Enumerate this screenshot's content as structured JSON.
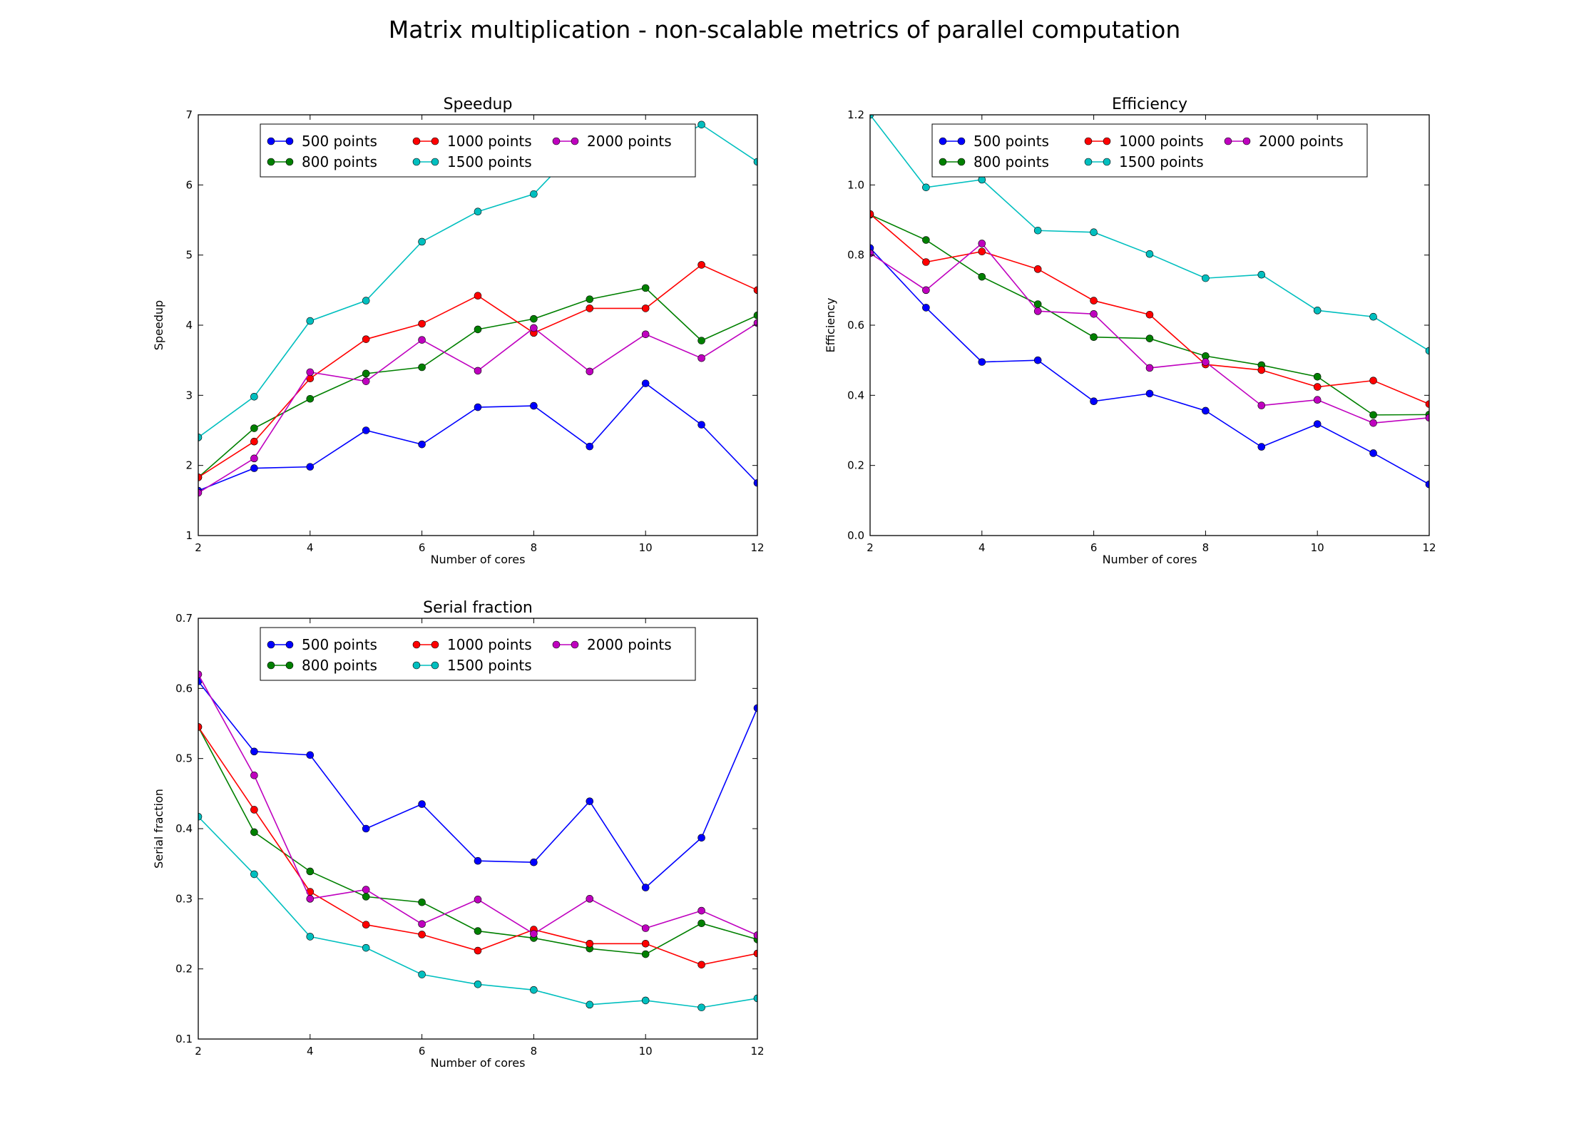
{
  "figure": {
    "title": "Matrix multiplication - non-scalable metrics of parallel computation"
  },
  "chart_data": [
    {
      "type": "line",
      "title": "Speedup",
      "xlabel": "Number of cores",
      "ylabel": "Speedup",
      "xlim": [
        2,
        12
      ],
      "ylim": [
        1,
        7
      ],
      "xticks": [
        2,
        4,
        6,
        8,
        10,
        12
      ],
      "yticks": [
        1,
        2,
        3,
        4,
        5,
        6,
        7
      ],
      "grid": false,
      "legend": "top-center",
      "x": [
        2,
        3,
        4,
        5,
        6,
        7,
        8,
        9,
        10,
        11,
        12
      ],
      "series": [
        {
          "name": "500 points",
          "color": "#0000ff",
          "values": [
            1.64,
            1.96,
            1.98,
            2.5,
            2.3,
            2.83,
            2.85,
            2.27,
            3.17,
            2.58,
            1.75
          ]
        },
        {
          "name": "800 points",
          "color": "#008000",
          "values": [
            1.83,
            2.53,
            2.95,
            3.31,
            3.4,
            3.94,
            4.09,
            4.37,
            4.53,
            3.78,
            4.14
          ]
        },
        {
          "name": "1000 points",
          "color": "#ff0000",
          "values": [
            1.83,
            2.34,
            3.24,
            3.8,
            4.02,
            4.42,
            3.89,
            4.24,
            4.24,
            4.86,
            4.5
          ]
        },
        {
          "name": "1500 points",
          "color": "#00bfbf",
          "values": [
            2.4,
            2.98,
            4.06,
            4.35,
            5.19,
            5.62,
            5.87,
            6.7,
            6.42,
            6.86,
            6.33
          ]
        },
        {
          "name": "2000 points",
          "color": "#bf00bf",
          "values": [
            1.61,
            2.1,
            3.33,
            3.2,
            3.79,
            3.35,
            3.96,
            3.34,
            3.87,
            3.53,
            4.03
          ]
        }
      ]
    },
    {
      "type": "line",
      "title": "Efficiency",
      "xlabel": "Number of cores",
      "ylabel": "Efficiency",
      "xlim": [
        2,
        12
      ],
      "ylim": [
        0.0,
        1.2
      ],
      "xticks": [
        2,
        4,
        6,
        8,
        10,
        12
      ],
      "yticks": [
        0.0,
        0.2,
        0.4,
        0.6,
        0.8,
        1.0,
        1.2
      ],
      "grid": false,
      "legend": "top-center",
      "x": [
        2,
        3,
        4,
        5,
        6,
        7,
        8,
        9,
        10,
        11,
        12
      ],
      "series": [
        {
          "name": "500 points",
          "color": "#0000ff",
          "values": [
            0.82,
            0.65,
            0.495,
            0.5,
            0.383,
            0.405,
            0.356,
            0.253,
            0.318,
            0.235,
            0.146
          ]
        },
        {
          "name": "800 points",
          "color": "#008000",
          "values": [
            0.915,
            0.843,
            0.738,
            0.66,
            0.566,
            0.562,
            0.512,
            0.486,
            0.453,
            0.344,
            0.345
          ]
        },
        {
          "name": "1000 points",
          "color": "#ff0000",
          "values": [
            0.917,
            0.78,
            0.81,
            0.76,
            0.67,
            0.63,
            0.488,
            0.472,
            0.424,
            0.442,
            0.375
          ]
        },
        {
          "name": "1500 points",
          "color": "#00bfbf",
          "values": [
            1.2,
            0.993,
            1.015,
            0.87,
            0.865,
            0.803,
            0.734,
            0.744,
            0.642,
            0.624,
            0.527
          ]
        },
        {
          "name": "2000 points",
          "color": "#bf00bf",
          "values": [
            0.805,
            0.7,
            0.833,
            0.64,
            0.632,
            0.478,
            0.495,
            0.371,
            0.387,
            0.321,
            0.336
          ]
        }
      ]
    },
    {
      "type": "line",
      "title": "Serial fraction",
      "xlabel": "Number of cores",
      "ylabel": "Serial fraction",
      "xlim": [
        2,
        12
      ],
      "ylim": [
        0.1,
        0.7
      ],
      "xticks": [
        2,
        4,
        6,
        8,
        10,
        12
      ],
      "yticks": [
        0.1,
        0.2,
        0.3,
        0.4,
        0.5,
        0.6,
        0.7
      ],
      "grid": false,
      "legend": "top-center",
      "x": [
        2,
        3,
        4,
        5,
        6,
        7,
        8,
        9,
        10,
        11,
        12
      ],
      "series": [
        {
          "name": "500 points",
          "color": "#0000ff",
          "values": [
            0.61,
            0.51,
            0.505,
            0.4,
            0.435,
            0.354,
            0.352,
            0.439,
            0.316,
            0.387,
            0.572
          ]
        },
        {
          "name": "800 points",
          "color": "#008000",
          "values": [
            0.545,
            0.395,
            0.339,
            0.303,
            0.295,
            0.254,
            0.244,
            0.229,
            0.221,
            0.265,
            0.242
          ]
        },
        {
          "name": "1000 points",
          "color": "#ff0000",
          "values": [
            0.545,
            0.427,
            0.31,
            0.263,
            0.249,
            0.226,
            0.256,
            0.236,
            0.236,
            0.206,
            0.222
          ]
        },
        {
          "name": "1500 points",
          "color": "#00bfbf",
          "values": [
            0.417,
            0.335,
            0.246,
            0.23,
            0.192,
            0.178,
            0.17,
            0.149,
            0.155,
            0.145,
            0.158
          ]
        },
        {
          "name": "2000 points",
          "color": "#bf00bf",
          "values": [
            0.62,
            0.476,
            0.3,
            0.313,
            0.264,
            0.299,
            0.25,
            0.3,
            0.258,
            0.283,
            0.248
          ]
        }
      ]
    }
  ]
}
